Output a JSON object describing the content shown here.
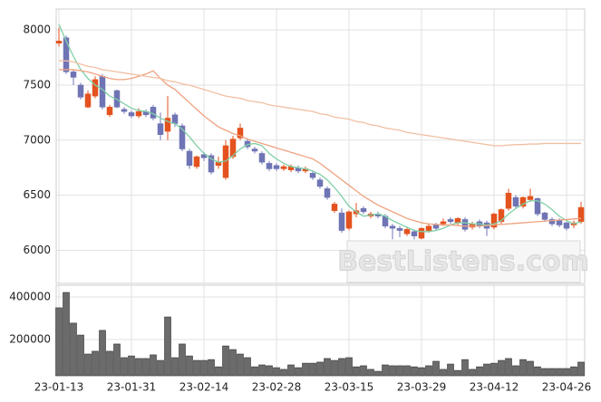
{
  "chart_data": {
    "type": "candlestick",
    "watermark": "BestListens.com",
    "categories": [
      "23-01-13",
      null,
      null,
      null,
      null,
      null,
      null,
      null,
      null,
      null,
      "23-01-31",
      null,
      null,
      null,
      null,
      null,
      null,
      null,
      null,
      null,
      "23-02-14",
      null,
      null,
      null,
      null,
      null,
      null,
      null,
      null,
      null,
      "23-02-28",
      null,
      null,
      null,
      null,
      null,
      null,
      null,
      null,
      null,
      "23-03-15",
      null,
      null,
      null,
      null,
      null,
      null,
      null,
      null,
      null,
      "23-03-29",
      null,
      null,
      null,
      null,
      null,
      null,
      null,
      null,
      null,
      "23-04-12",
      null,
      null,
      null,
      null,
      null,
      null,
      null,
      null,
      null,
      "23-04-26",
      null,
      null
    ],
    "open": [
      7880,
      7930,
      7620,
      7500,
      7300,
      7400,
      7580,
      7230,
      7450,
      7280,
      7250,
      7220,
      7260,
      7300,
      7150,
      7080,
      7230,
      7130,
      6900,
      6760,
      6870,
      6860,
      6770,
      6660,
      6850,
      7020,
      6990,
      6920,
      6880,
      6790,
      6770,
      6740,
      6730,
      6750,
      6720,
      6700,
      6640,
      6560,
      6360,
      6340,
      6200,
      6330,
      6380,
      6310,
      6330,
      6310,
      6220,
      6200,
      6150,
      6170,
      6110,
      6180,
      6230,
      6240,
      6280,
      6250,
      6280,
      6210,
      6260,
      6250,
      6210,
      6260,
      6380,
      6480,
      6400,
      6460,
      6470,
      6340,
      6280,
      6270,
      6250,
      6230,
      6260
    ],
    "high": [
      8020,
      7950,
      7640,
      7520,
      7450,
      7580,
      7600,
      7320,
      7460,
      7300,
      7270,
      7290,
      7280,
      7320,
      7250,
      7400,
      7250,
      7150,
      6920,
      6860,
      6890,
      6880,
      6850,
      7000,
      7040,
      7150,
      7010,
      6940,
      6900,
      6810,
      6790,
      6780,
      6780,
      6770,
      6760,
      6720,
      6660,
      6580,
      6440,
      6380,
      6360,
      6430,
      6400,
      6350,
      6350,
      6330,
      6240,
      6220,
      6210,
      6190,
      6210,
      6240,
      6250,
      6290,
      6300,
      6300,
      6300,
      6260,
      6280,
      6270,
      6340,
      6380,
      6560,
      6500,
      6490,
      6560,
      6480,
      6350,
      6300,
      6290,
      6260,
      6270,
      6440
    ],
    "low": [
      7850,
      7600,
      7500,
      7370,
      7290,
      7380,
      7280,
      7210,
      7290,
      7240,
      7200,
      7200,
      7210,
      7180,
      7000,
      7000,
      7120,
      6900,
      6740,
      6740,
      6810,
      6690,
      6740,
      6640,
      6830,
      7000,
      6920,
      6880,
      6780,
      6720,
      6720,
      6720,
      6710,
      6700,
      6700,
      6640,
      6560,
      6460,
      6340,
      6160,
      6180,
      6300,
      6330,
      6290,
      6290,
      6200,
      6100,
      6120,
      6130,
      6100,
      6100,
      6160,
      6180,
      6220,
      6240,
      6230,
      6170,
      6190,
      6200,
      6130,
      6190,
      6240,
      6360,
      6380,
      6380,
      6440,
      6310,
      6260,
      6220,
      6210,
      6180,
      6200,
      6240
    ],
    "close": [
      7900,
      7620,
      7570,
      7390,
      7420,
      7550,
      7300,
      7300,
      7300,
      7260,
      7220,
      7260,
      7230,
      7200,
      7050,
      7200,
      7150,
      6920,
      6770,
      6850,
      6840,
      6710,
      6800,
      6950,
      7010,
      7110,
      6940,
      6900,
      6800,
      6740,
      6740,
      6760,
      6760,
      6720,
      6740,
      6660,
      6580,
      6480,
      6420,
      6180,
      6350,
      6360,
      6350,
      6330,
      6310,
      6220,
      6200,
      6180,
      6190,
      6130,
      6200,
      6220,
      6200,
      6260,
      6260,
      6290,
      6190,
      6240,
      6220,
      6200,
      6330,
      6370,
      6520,
      6400,
      6480,
      6490,
      6330,
      6280,
      6240,
      6230,
      6200,
      6250,
      6390
    ],
    "up_color": "#e4521f",
    "down_color": "#6f74b4",
    "ylim": [
      5700,
      8190
    ],
    "yticks": [
      6000,
      6500,
      7000,
      7500,
      8000
    ],
    "grid": true,
    "series": [
      {
        "color": "#7fcfa6",
        "values": [
          8050,
          7900,
          7760,
          7640,
          7560,
          7500,
          7460,
          7400,
          7370,
          7330,
          7290,
          7270,
          7260,
          7240,
          7200,
          7170,
          7150,
          7100,
          7030,
          6950,
          6880,
          6830,
          6800,
          6810,
          6860,
          6920,
          6960,
          6970,
          6950,
          6880,
          6830,
          6790,
          6760,
          6750,
          6740,
          6720,
          6690,
          6640,
          6570,
          6490,
          6400,
          6350,
          6310,
          6320,
          6330,
          6310,
          6270,
          6240,
          6210,
          6180,
          6170,
          6170,
          6180,
          6200,
          6230,
          6250,
          6250,
          6240,
          6240,
          6230,
          6240,
          6270,
          6330,
          6380,
          6420,
          6450,
          6450,
          6420,
          6370,
          6310,
          6270,
          6240,
          6260
        ]
      },
      {
        "color": "#eea27f",
        "values": [
          7640,
          7640,
          7640,
          7630,
          7620,
          7600,
          7580,
          7560,
          7550,
          7550,
          7560,
          7580,
          7600,
          7630,
          7560,
          7500,
          7460,
          7400,
          7340,
          7280,
          7220,
          7170,
          7120,
          7090,
          7060,
          7040,
          7010,
          6990,
          6970,
          6950,
          6930,
          6910,
          6890,
          6870,
          6850,
          6830,
          6790,
          6740,
          6690,
          6640,
          6590,
          6540,
          6490,
          6450,
          6410,
          6380,
          6350,
          6320,
          6290,
          6270,
          6250,
          6240,
          6235,
          6230,
          6230,
          6225,
          6220,
          6220,
          6220,
          6225,
          6230,
          6235,
          6240,
          6245,
          6250,
          6255,
          6260,
          6265,
          6270,
          6275,
          6280,
          6285,
          6290
        ]
      },
      {
        "color": "#f2bfa3",
        "values": [
          7720,
          7720,
          7710,
          7690,
          7670,
          7660,
          7640,
          7630,
          7620,
          7610,
          7600,
          7590,
          7580,
          7570,
          7560,
          7540,
          7530,
          7510,
          7500,
          7480,
          7460,
          7440,
          7420,
          7400,
          7390,
          7380,
          7360,
          7350,
          7340,
          7320,
          7310,
          7300,
          7290,
          7280,
          7270,
          7260,
          7240,
          7230,
          7210,
          7200,
          7190,
          7170,
          7160,
          7140,
          7130,
          7110,
          7100,
          7090,
          7070,
          7060,
          7050,
          7040,
          7030,
          7020,
          7010,
          7000,
          6990,
          6980,
          6970,
          6960,
          6950,
          6950,
          6955,
          6960,
          6960,
          6965,
          6965,
          6970,
          6970,
          6970,
          6970,
          6970,
          6970
        ]
      }
    ],
    "volume": {
      "type": "bar",
      "color": "#6b6b6b",
      "values": [
        349000,
        421000,
        277000,
        221000,
        132000,
        145000,
        243000,
        145000,
        179000,
        115000,
        123000,
        111000,
        111000,
        128000,
        102000,
        306000,
        115000,
        179000,
        123000,
        102000,
        102000,
        106000,
        72000,
        170000,
        153000,
        132000,
        115000,
        72000,
        81000,
        77000,
        68000,
        60000,
        81000,
        68000,
        89000,
        89000,
        94000,
        111000,
        102000,
        111000,
        115000,
        72000,
        77000,
        60000,
        51000,
        81000,
        77000,
        77000,
        77000,
        72000,
        68000,
        77000,
        98000,
        60000,
        85000,
        55000,
        106000,
        60000,
        72000,
        85000,
        89000,
        102000,
        111000,
        77000,
        106000,
        98000,
        72000,
        64000,
        64000,
        64000,
        64000,
        72000,
        94000
      ],
      "ylim": [
        30000,
        455000
      ],
      "yticks": [
        200000,
        400000
      ]
    }
  }
}
